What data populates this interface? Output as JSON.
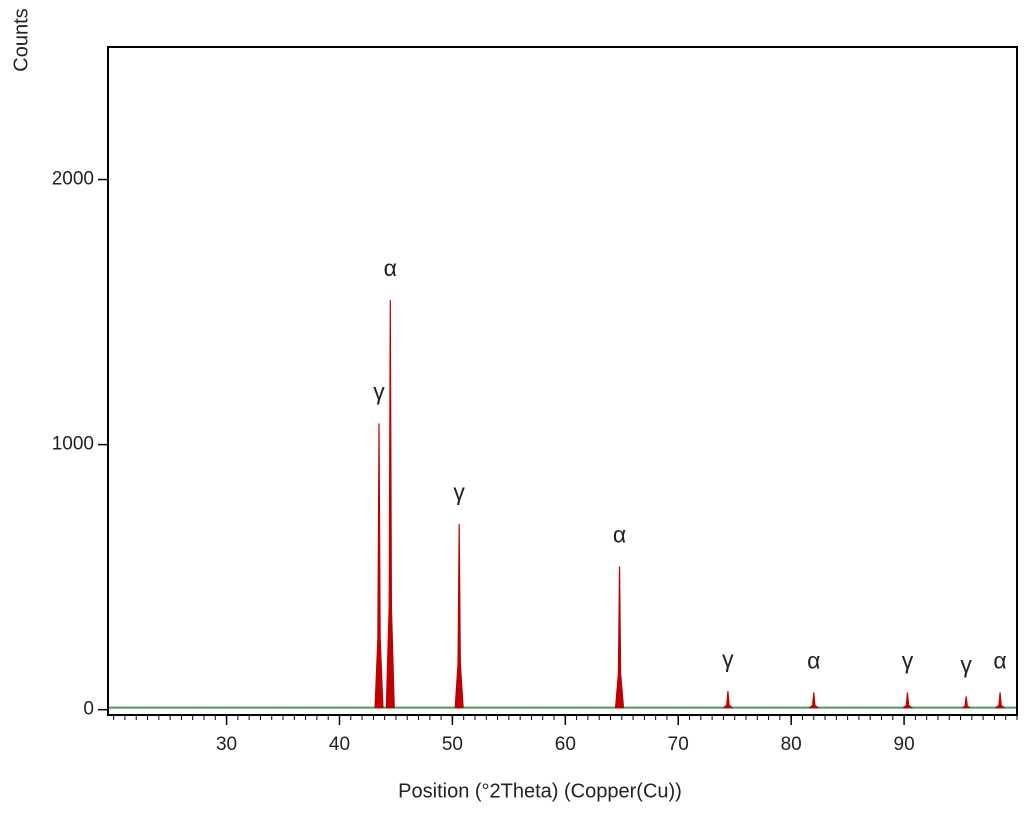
{
  "chart_data": {
    "type": "peaks",
    "x_label": "Position (°2Theta) (Copper(Cu))",
    "y_label": "Counts",
    "x": [
      43.5,
      44.5,
      50.6,
      64.8,
      74.4,
      82.0,
      90.3,
      95.5,
      98.5
    ],
    "values": [
      1080,
      1545,
      700,
      540,
      70,
      65,
      65,
      50,
      65
    ],
    "labels": [
      "γ",
      "α",
      "γ",
      "α",
      "γ",
      "α",
      "γ",
      "γ",
      "α"
    ],
    "color": "#c00000",
    "baseline": 8,
    "baseline_color": "#4a9a6a",
    "xlim": [
      19.5,
      100
    ],
    "ylim": [
      -20,
      2500
    ],
    "xticks": [
      30,
      40,
      50,
      60,
      70,
      80,
      90
    ],
    "yticks": [
      0,
      1000,
      2000
    ],
    "xminor": 1
  }
}
